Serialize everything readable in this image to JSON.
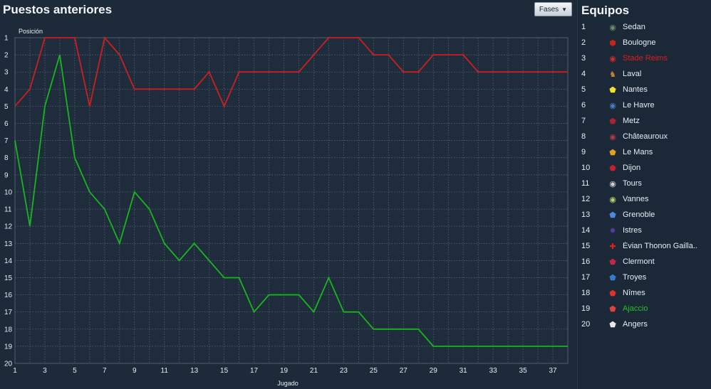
{
  "header": {
    "title": "Puestos anteriores",
    "stages_button": "Fases"
  },
  "teams_panel": {
    "title": "Equipos",
    "teams": [
      {
        "pos": "1",
        "name": "Sedan",
        "icon": "crest-sedan-icon",
        "crest_color": "#6b8f6b",
        "glyph": "◉",
        "name_color": "#e8edf2"
      },
      {
        "pos": "2",
        "name": "Boulogne",
        "icon": "crest-boulogne-icon",
        "crest_color": "#c0261f",
        "glyph": "⬢",
        "name_color": "#e8edf2"
      },
      {
        "pos": "3",
        "name": "Stade Reims",
        "icon": "crest-reims-icon",
        "crest_color": "#d42a2a",
        "glyph": "◉",
        "name_color": "#e01b1b"
      },
      {
        "pos": "4",
        "name": "Laval",
        "icon": "crest-laval-icon",
        "crest_color": "#c9803a",
        "glyph": "♞",
        "name_color": "#e8edf2"
      },
      {
        "pos": "5",
        "name": "Nantes",
        "icon": "crest-nantes-icon",
        "crest_color": "#f2e22a",
        "glyph": "⬟",
        "name_color": "#e8edf2"
      },
      {
        "pos": "6",
        "name": "Le Havre",
        "icon": "crest-lehavre-icon",
        "crest_color": "#4a7fc4",
        "glyph": "◉",
        "name_color": "#e8edf2"
      },
      {
        "pos": "7",
        "name": "Metz",
        "icon": "crest-metz-icon",
        "crest_color": "#a82434",
        "glyph": "⬟",
        "name_color": "#e8edf2"
      },
      {
        "pos": "8",
        "name": "Châteauroux",
        "icon": "crest-chateauroux-icon",
        "crest_color": "#b03a4a",
        "glyph": "◉",
        "name_color": "#e8edf2"
      },
      {
        "pos": "9",
        "name": "Le Mans",
        "icon": "crest-lemans-icon",
        "crest_color": "#e0a020",
        "glyph": "⬟",
        "name_color": "#e8edf2"
      },
      {
        "pos": "10",
        "name": "Dijon",
        "icon": "crest-dijon-icon",
        "crest_color": "#c42030",
        "glyph": "⬟",
        "name_color": "#e8edf2"
      },
      {
        "pos": "11",
        "name": "Tours",
        "icon": "crest-tours-icon",
        "crest_color": "#d0d0d0",
        "glyph": "◉",
        "name_color": "#e8edf2"
      },
      {
        "pos": "12",
        "name": "Vannes",
        "icon": "crest-vannes-icon",
        "crest_color": "#b8d070",
        "glyph": "◉",
        "name_color": "#e8edf2"
      },
      {
        "pos": "13",
        "name": "Grenoble",
        "icon": "crest-grenoble-icon",
        "crest_color": "#4a8ad8",
        "glyph": "⬟",
        "name_color": "#e8edf2"
      },
      {
        "pos": "14",
        "name": "Istres",
        "icon": "crest-istres-icon",
        "crest_color": "#5a3aa0",
        "glyph": "✸",
        "name_color": "#e8edf2"
      },
      {
        "pos": "15",
        "name": "Évian Thonon Gailla..",
        "icon": "crest-evian-icon",
        "crest_color": "#e02020",
        "glyph": "✚",
        "name_color": "#e8edf2"
      },
      {
        "pos": "16",
        "name": "Clermont",
        "icon": "crest-clermont-icon",
        "crest_color": "#c02848",
        "glyph": "⬟",
        "name_color": "#e8edf2"
      },
      {
        "pos": "17",
        "name": "Troyes",
        "icon": "crest-troyes-icon",
        "crest_color": "#3a7ac8",
        "glyph": "⬟",
        "name_color": "#e8edf2"
      },
      {
        "pos": "18",
        "name": "Nîmes",
        "icon": "crest-nimes-icon",
        "crest_color": "#e03030",
        "glyph": "⬟",
        "name_color": "#e8edf2"
      },
      {
        "pos": "19",
        "name": "Ajaccio",
        "icon": "crest-ajaccio-icon",
        "crest_color": "#e04040",
        "glyph": "⬟",
        "name_color": "#22c422"
      },
      {
        "pos": "20",
        "name": "Angers",
        "icon": "crest-angers-icon",
        "crest_color": "#e8e8e8",
        "glyph": "⬟",
        "name_color": "#e8edf2"
      }
    ]
  },
  "chart_data": {
    "type": "line",
    "title": "",
    "xlabel": "Jugado",
    "ylabel": "Posición",
    "xlim": [
      1,
      38
    ],
    "ylim": [
      1,
      20
    ],
    "y_inverted": true,
    "x_ticks": [
      1,
      3,
      5,
      7,
      9,
      11,
      13,
      15,
      17,
      19,
      21,
      23,
      25,
      27,
      29,
      31,
      33,
      35,
      37
    ],
    "y_ticks": [
      1,
      2,
      3,
      4,
      5,
      6,
      7,
      8,
      9,
      10,
      11,
      12,
      13,
      14,
      15,
      16,
      17,
      18,
      19,
      20
    ],
    "grid": true,
    "x": [
      1,
      2,
      3,
      4,
      5,
      6,
      7,
      8,
      9,
      10,
      11,
      12,
      13,
      14,
      15,
      16,
      17,
      18,
      19,
      20,
      21,
      22,
      23,
      24,
      25,
      26,
      27,
      28,
      29,
      30,
      31,
      32,
      33,
      34,
      35,
      36,
      37,
      38
    ],
    "series": [
      {
        "name": "Stade Reims",
        "color": "#cc1f1f",
        "values": [
          5,
          4,
          1,
          1,
          1,
          5,
          1,
          2,
          4,
          4,
          4,
          4,
          4,
          3,
          5,
          3,
          3,
          3,
          3,
          3,
          2,
          1,
          1,
          1,
          2,
          2,
          3,
          3,
          2,
          2,
          2,
          3,
          3,
          3,
          3,
          3,
          3,
          3
        ]
      },
      {
        "name": "Ajaccio",
        "color": "#19b51f",
        "values": [
          7,
          12,
          5,
          2,
          8,
          10,
          11,
          13,
          10,
          11,
          13,
          14,
          13,
          14,
          15,
          15,
          17,
          16,
          16,
          16,
          17,
          15,
          17,
          17,
          18,
          18,
          18,
          18,
          19,
          19,
          19,
          19,
          19,
          19,
          19,
          19,
          19,
          19
        ]
      }
    ]
  }
}
